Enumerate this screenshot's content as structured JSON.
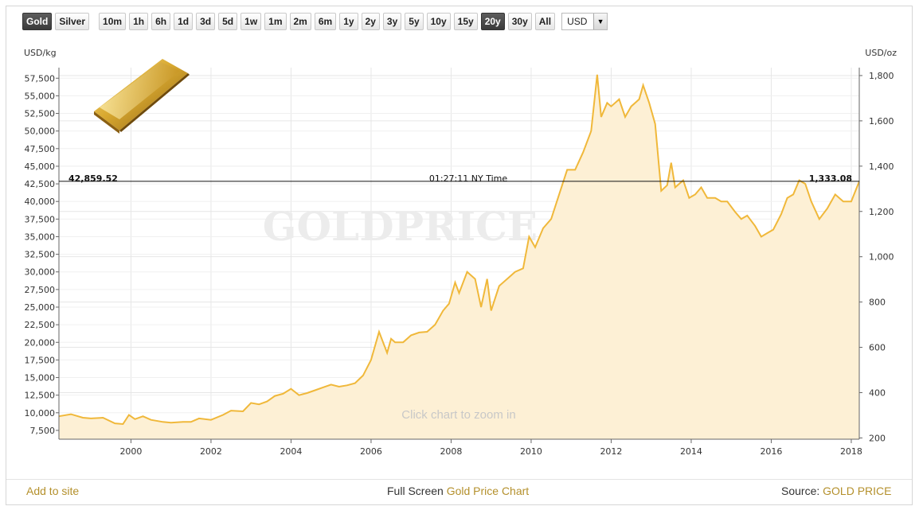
{
  "toolbar": {
    "metals": [
      {
        "label": "Gold",
        "active": true
      },
      {
        "label": "Silver",
        "active": false
      }
    ],
    "ranges": [
      {
        "label": "10m",
        "active": false
      },
      {
        "label": "1h",
        "active": false
      },
      {
        "label": "6h",
        "active": false
      },
      {
        "label": "1d",
        "active": false
      },
      {
        "label": "3d",
        "active": false
      },
      {
        "label": "5d",
        "active": false
      },
      {
        "label": "1w",
        "active": false
      },
      {
        "label": "1m",
        "active": false
      },
      {
        "label": "2m",
        "active": false
      },
      {
        "label": "6m",
        "active": false
      },
      {
        "label": "1y",
        "active": false
      },
      {
        "label": "2y",
        "active": false
      },
      {
        "label": "3y",
        "active": false
      },
      {
        "label": "5y",
        "active": false
      },
      {
        "label": "10y",
        "active": false
      },
      {
        "label": "15y",
        "active": false
      },
      {
        "label": "20y",
        "active": true
      },
      {
        "label": "30y",
        "active": false
      },
      {
        "label": "All",
        "active": false
      }
    ],
    "currency": "USD"
  },
  "chart": {
    "left_unit": "USD/kg",
    "right_unit": "USD/oz",
    "current_left_value": "42,859.52",
    "current_right_value": "1,333.08",
    "time_label": "01:27:11 NY Time",
    "watermark": "GOLDPRICE.ORG",
    "zoom_hint": "Click chart to zoom in",
    "line_color": "#f0b83a",
    "fill_color": "#fdf0d5"
  },
  "footer": {
    "add_to_site": "Add to site",
    "full_screen_prefix": "Full Screen",
    "full_screen_link": "Gold Price Chart",
    "source_prefix": "Source:",
    "source_link": "GOLD PRICE"
  },
  "chart_data": {
    "type": "area",
    "title": "",
    "xlabel": "",
    "ylabel": "USD/kg",
    "y2label": "USD/oz",
    "xlim": [
      1998.2,
      2018.2
    ],
    "ylim": [
      6250,
      59000
    ],
    "y2lim": [
      194.4,
      1835
    ],
    "x_ticks": [
      "2000",
      "2002",
      "2004",
      "2006",
      "2008",
      "2010",
      "2012",
      "2014",
      "2016",
      "2018"
    ],
    "y_ticks": [
      "7,500",
      "10,000",
      "12,500",
      "15,000",
      "17,500",
      "20,000",
      "22,500",
      "25,000",
      "27,500",
      "30,000",
      "32,500",
      "35,000",
      "37,500",
      "40,000",
      "42,500",
      "45,000",
      "47,500",
      "50,000",
      "52,500",
      "55,000",
      "57,500"
    ],
    "y2_ticks": [
      "200",
      "400",
      "600",
      "800",
      "1,000",
      "1,200",
      "1,400",
      "1,600",
      "1,800"
    ],
    "current_value_kg": 42859.52,
    "series": [
      {
        "x": [
          1998.2,
          1998.5,
          1998.8,
          1999.0,
          1999.3,
          1999.6,
          1999.8,
          1999.95,
          2000.1,
          2000.3,
          2000.5,
          2000.8,
          2001.0,
          2001.3,
          2001.5,
          2001.7,
          2002.0,
          2002.3,
          2002.5,
          2002.8,
          2003.0,
          2003.2,
          2003.4,
          2003.6,
          2003.8,
          2004.0,
          2004.2,
          2004.4,
          2004.6,
          2004.8,
          2005.0,
          2005.2,
          2005.4,
          2005.6,
          2005.8,
          2006.0,
          2006.2,
          2006.4,
          2006.5,
          2006.6,
          2006.8,
          2007.0,
          2007.2,
          2007.4,
          2007.6,
          2007.8,
          2007.95,
          2008.1,
          2008.2,
          2008.4,
          2008.6,
          2008.75,
          2008.9,
          2009.0,
          2009.2,
          2009.4,
          2009.6,
          2009.8,
          2009.95,
          2010.1,
          2010.3,
          2010.5,
          2010.7,
          2010.9,
          2011.1,
          2011.3,
          2011.5,
          2011.65,
          2011.75,
          2011.9,
          2012.0,
          2012.2,
          2012.35,
          2012.5,
          2012.7,
          2012.8,
          2012.95,
          2013.1,
          2013.25,
          2013.4,
          2013.5,
          2013.6,
          2013.8,
          2013.95,
          2014.1,
          2014.25,
          2014.4,
          2014.6,
          2014.75,
          2014.9,
          2015.1,
          2015.25,
          2015.4,
          2015.6,
          2015.75,
          2015.9,
          2016.05,
          2016.25,
          2016.4,
          2016.55,
          2016.7,
          2016.85,
          2017.0,
          2017.2,
          2017.4,
          2017.6,
          2017.8,
          2018.0,
          2018.2
        ],
        "y": [
          9500,
          9800,
          9300,
          9200,
          9300,
          8500,
          8400,
          9700,
          9100,
          9500,
          9000,
          8700,
          8600,
          8700,
          8700,
          9200,
          9000,
          9700,
          10300,
          10200,
          11400,
          11200,
          11600,
          12400,
          12700,
          13400,
          12500,
          12800,
          13200,
          13600,
          14000,
          13700,
          13900,
          14200,
          15300,
          17500,
          21500,
          18500,
          20500,
          20000,
          20000,
          21000,
          21400,
          21500,
          22500,
          24500,
          25500,
          28500,
          27000,
          30000,
          29000,
          25000,
          29000,
          24500,
          28000,
          29000,
          30000,
          30500,
          35000,
          33500,
          36200,
          37500,
          41000,
          44500,
          44500,
          47000,
          50000,
          58000,
          52000,
          54000,
          53500,
          54500,
          52000,
          53500,
          54500,
          56500,
          54000,
          51000,
          41500,
          42300,
          45500,
          42000,
          43000,
          40500,
          41000,
          42000,
          40500,
          40500,
          40000,
          40000,
          38500,
          37500,
          38000,
          36500,
          35000,
          35500,
          36000,
          38200,
          40500,
          41000,
          43000,
          42500,
          40000,
          37500,
          39000,
          41000,
          40000,
          40000,
          42859.52
        ]
      }
    ]
  }
}
